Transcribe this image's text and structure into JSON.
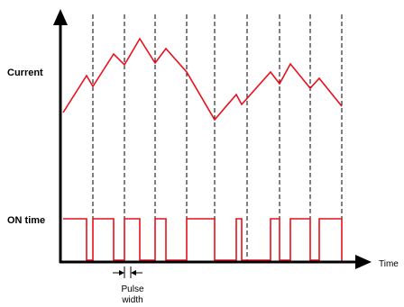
{
  "labels": {
    "current": "Current",
    "on_time": "ON time",
    "time": "Time",
    "pulse_line1": "Pulse",
    "pulse_line2": "width"
  },
  "colors": {
    "waveform": "#e8101c",
    "axis": "#000000",
    "gridline": "#000000"
  },
  "grid": {
    "dashed_line_count": 9
  }
}
